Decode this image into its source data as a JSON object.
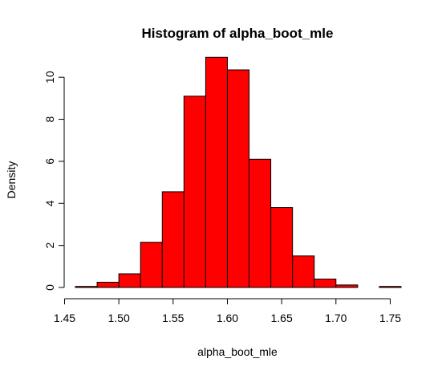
{
  "chart_data": {
    "type": "bar",
    "title": "Histogram of alpha_boot_mle",
    "xlabel": "alpha_boot_mle",
    "ylabel": "Density",
    "xlim": [
      1.46,
      1.76
    ],
    "ylim": [
      0,
      11
    ],
    "x_ticks": [
      1.45,
      1.5,
      1.55,
      1.6,
      1.65,
      1.7,
      1.75
    ],
    "x_tick_labels": [
      "1.45",
      "1.50",
      "1.55",
      "1.60",
      "1.65",
      "1.70",
      "1.75"
    ],
    "y_ticks": [
      0,
      2,
      4,
      6,
      8,
      10
    ],
    "y_tick_labels": [
      "0",
      "2",
      "4",
      "6",
      "8",
      "10"
    ],
    "bin_width": 0.02,
    "bin_starts": [
      1.46,
      1.48,
      1.5,
      1.52,
      1.54,
      1.56,
      1.58,
      1.6,
      1.62,
      1.64,
      1.66,
      1.68,
      1.7,
      1.72,
      1.74
    ],
    "values": [
      0.05,
      0.25,
      0.65,
      2.15,
      4.55,
      9.1,
      10.95,
      10.35,
      6.1,
      3.8,
      1.5,
      0.4,
      0.12,
      0.0,
      0.05
    ],
    "bar_fill": "#ff0000",
    "bar_stroke": "#000000",
    "grid": false,
    "legend": "none"
  }
}
